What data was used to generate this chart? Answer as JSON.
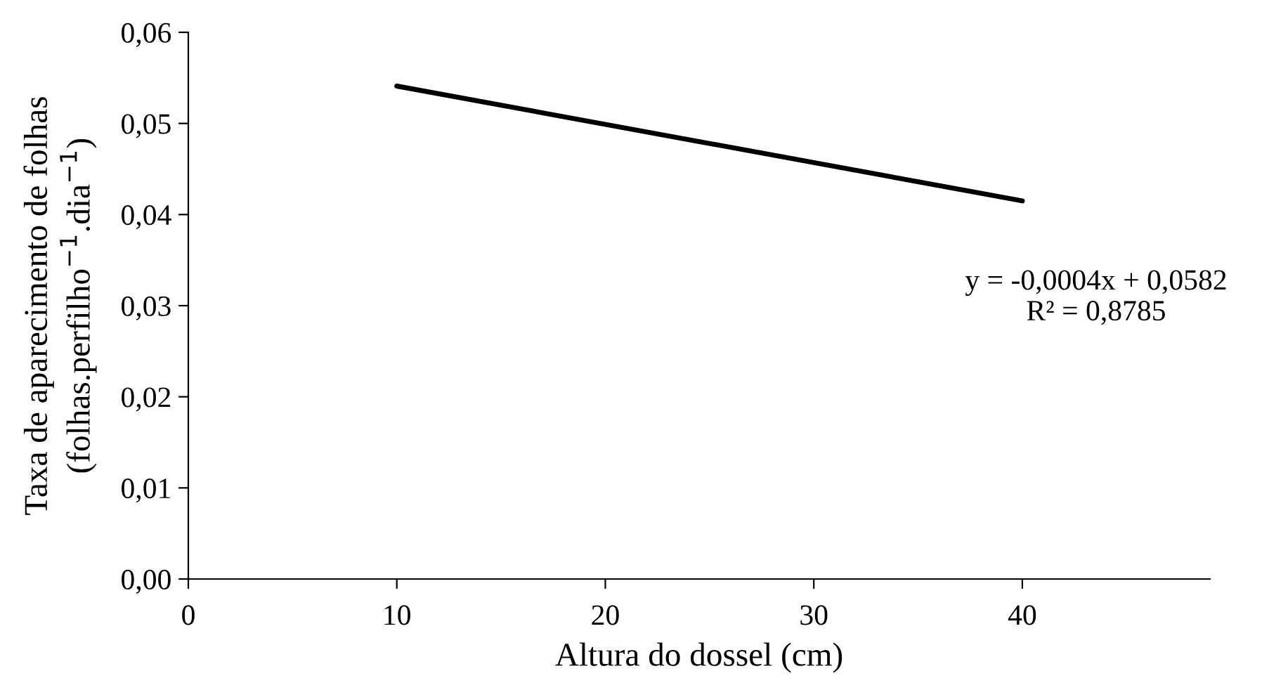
{
  "chart_data": {
    "type": "line",
    "xlabel": "Altura do dossel (cm)",
    "ylabel": "Taxa de aparecimento de folhas\n(folhas.perfilho$^{−1}$.dia$^{−1}$)",
    "series": [
      {
        "x": [
          10,
          40
        ],
        "values": [
          0.0541,
          0.0415
        ],
        "color": "#000000"
      }
    ],
    "xlim": [
      0,
      49
    ],
    "xticks": [
      0,
      10,
      20,
      30,
      40
    ],
    "ylim": [
      0,
      0.06
    ],
    "yticks": [
      {
        "value": 0,
        "label": "0,00"
      },
      {
        "value": 0.01,
        "label": "0,01"
      },
      {
        "value": 0.02,
        "label": "0,02"
      },
      {
        "value": 0.03,
        "label": "0,03"
      },
      {
        "value": 0.04,
        "label": "0,04"
      },
      {
        "value": 0.05,
        "label": "0,05"
      },
      {
        "value": 0.06,
        "label": "0,06"
      }
    ],
    "annotations": [
      "y = -0,0004x + 0,0582\nR² = 0,8785"
    ],
    "grid": false,
    "marker": "none",
    "line_style": "solid"
  }
}
